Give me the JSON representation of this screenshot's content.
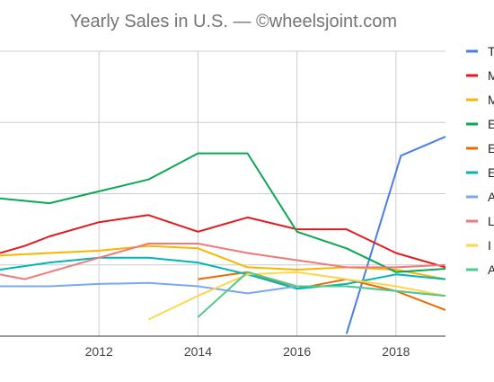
{
  "chart_data": {
    "type": "line",
    "title": "Yearly Sales in U.S. — ©wheelsjoint.com",
    "xlabel": "",
    "ylabel": "",
    "x_ticks": [
      "2012",
      "2014",
      "2016",
      "2018"
    ],
    "xlim": [
      2010,
      2019
    ],
    "ylim": [
      0,
      6
    ],
    "grid": true,
    "legend_position": "right",
    "series": [
      {
        "name": "T",
        "color": "#4a7fe0",
        "points": [
          [
            2017,
            0.05
          ],
          [
            2018.1,
            3.8
          ],
          [
            2019,
            4.2
          ]
        ]
      },
      {
        "name": "M",
        "color": "#e31a1c",
        "points": [
          [
            2010,
            1.75
          ],
          [
            2010.5,
            1.9
          ],
          [
            2011,
            2.1
          ],
          [
            2012,
            2.4
          ],
          [
            2013,
            2.55
          ],
          [
            2014,
            2.2
          ],
          [
            2015,
            2.5
          ],
          [
            2016,
            2.25
          ],
          [
            2017,
            2.25
          ],
          [
            2018,
            1.75
          ],
          [
            2019,
            1.45
          ]
        ]
      },
      {
        "name": "M",
        "color": "#f5b800",
        "points": [
          [
            2010,
            1.7
          ],
          [
            2011,
            1.75
          ],
          [
            2012,
            1.8
          ],
          [
            2013,
            1.9
          ],
          [
            2014,
            1.85
          ],
          [
            2015,
            1.45
          ],
          [
            2016,
            1.4
          ],
          [
            2017,
            1.45
          ],
          [
            2018,
            1.4
          ],
          [
            2019,
            1.2
          ]
        ]
      },
      {
        "name": "E",
        "color": "#0ca751",
        "points": [
          [
            2010,
            2.9
          ],
          [
            2011,
            2.8
          ],
          [
            2012,
            3.05
          ],
          [
            2013,
            3.3
          ],
          [
            2014,
            3.85
          ],
          [
            2015,
            3.85
          ],
          [
            2016,
            2.2
          ],
          [
            2017,
            1.85
          ],
          [
            2018,
            1.35
          ],
          [
            2019,
            1.42
          ]
        ]
      },
      {
        "name": "E",
        "color": "#ee6a00",
        "points": [
          [
            2014,
            1.2
          ],
          [
            2015,
            1.35
          ],
          [
            2016,
            1.0
          ],
          [
            2017,
            1.2
          ],
          [
            2018,
            0.95
          ],
          [
            2019,
            0.55
          ]
        ]
      },
      {
        "name": "E",
        "color": "#00b6b6",
        "points": [
          [
            2010,
            1.4
          ],
          [
            2011,
            1.55
          ],
          [
            2012,
            1.65
          ],
          [
            2013,
            1.65
          ],
          [
            2014,
            1.55
          ],
          [
            2015,
            1.3
          ],
          [
            2016,
            1.0
          ],
          [
            2017,
            1.1
          ],
          [
            2018,
            1.3
          ],
          [
            2019,
            1.2
          ]
        ]
      },
      {
        "name": "A",
        "color": "#7aa7ef",
        "points": [
          [
            2010,
            1.05
          ],
          [
            2011,
            1.05
          ],
          [
            2012,
            1.1
          ],
          [
            2013,
            1.12
          ],
          [
            2014,
            1.05
          ],
          [
            2015,
            0.9
          ],
          [
            2016,
            1.05
          ],
          [
            2017,
            1.05
          ],
          [
            2018,
            0.95
          ],
          [
            2019,
            0.85
          ]
        ]
      },
      {
        "name": "L",
        "color": "#f07878",
        "points": [
          [
            2010,
            1.3
          ],
          [
            2010.5,
            1.2
          ],
          [
            2012,
            1.65
          ],
          [
            2013,
            1.95
          ],
          [
            2014,
            1.95
          ],
          [
            2015,
            1.75
          ],
          [
            2016,
            1.6
          ],
          [
            2017,
            1.45
          ],
          [
            2018,
            1.45
          ],
          [
            2019,
            1.5
          ]
        ]
      },
      {
        "name": "I",
        "color": "#ffd54a",
        "points": [
          [
            2013,
            0.35
          ],
          [
            2014,
            0.85
          ],
          [
            2015,
            1.3
          ],
          [
            2016,
            1.35
          ],
          [
            2017,
            1.2
          ],
          [
            2018,
            1.05
          ],
          [
            2019,
            0.85
          ]
        ]
      },
      {
        "name": "A",
        "color": "#52c98a",
        "points": [
          [
            2014,
            0.4
          ],
          [
            2015,
            1.35
          ],
          [
            2016,
            1.05
          ],
          [
            2017,
            1.05
          ],
          [
            2018,
            0.95
          ],
          [
            2019,
            0.85
          ]
        ]
      }
    ]
  }
}
